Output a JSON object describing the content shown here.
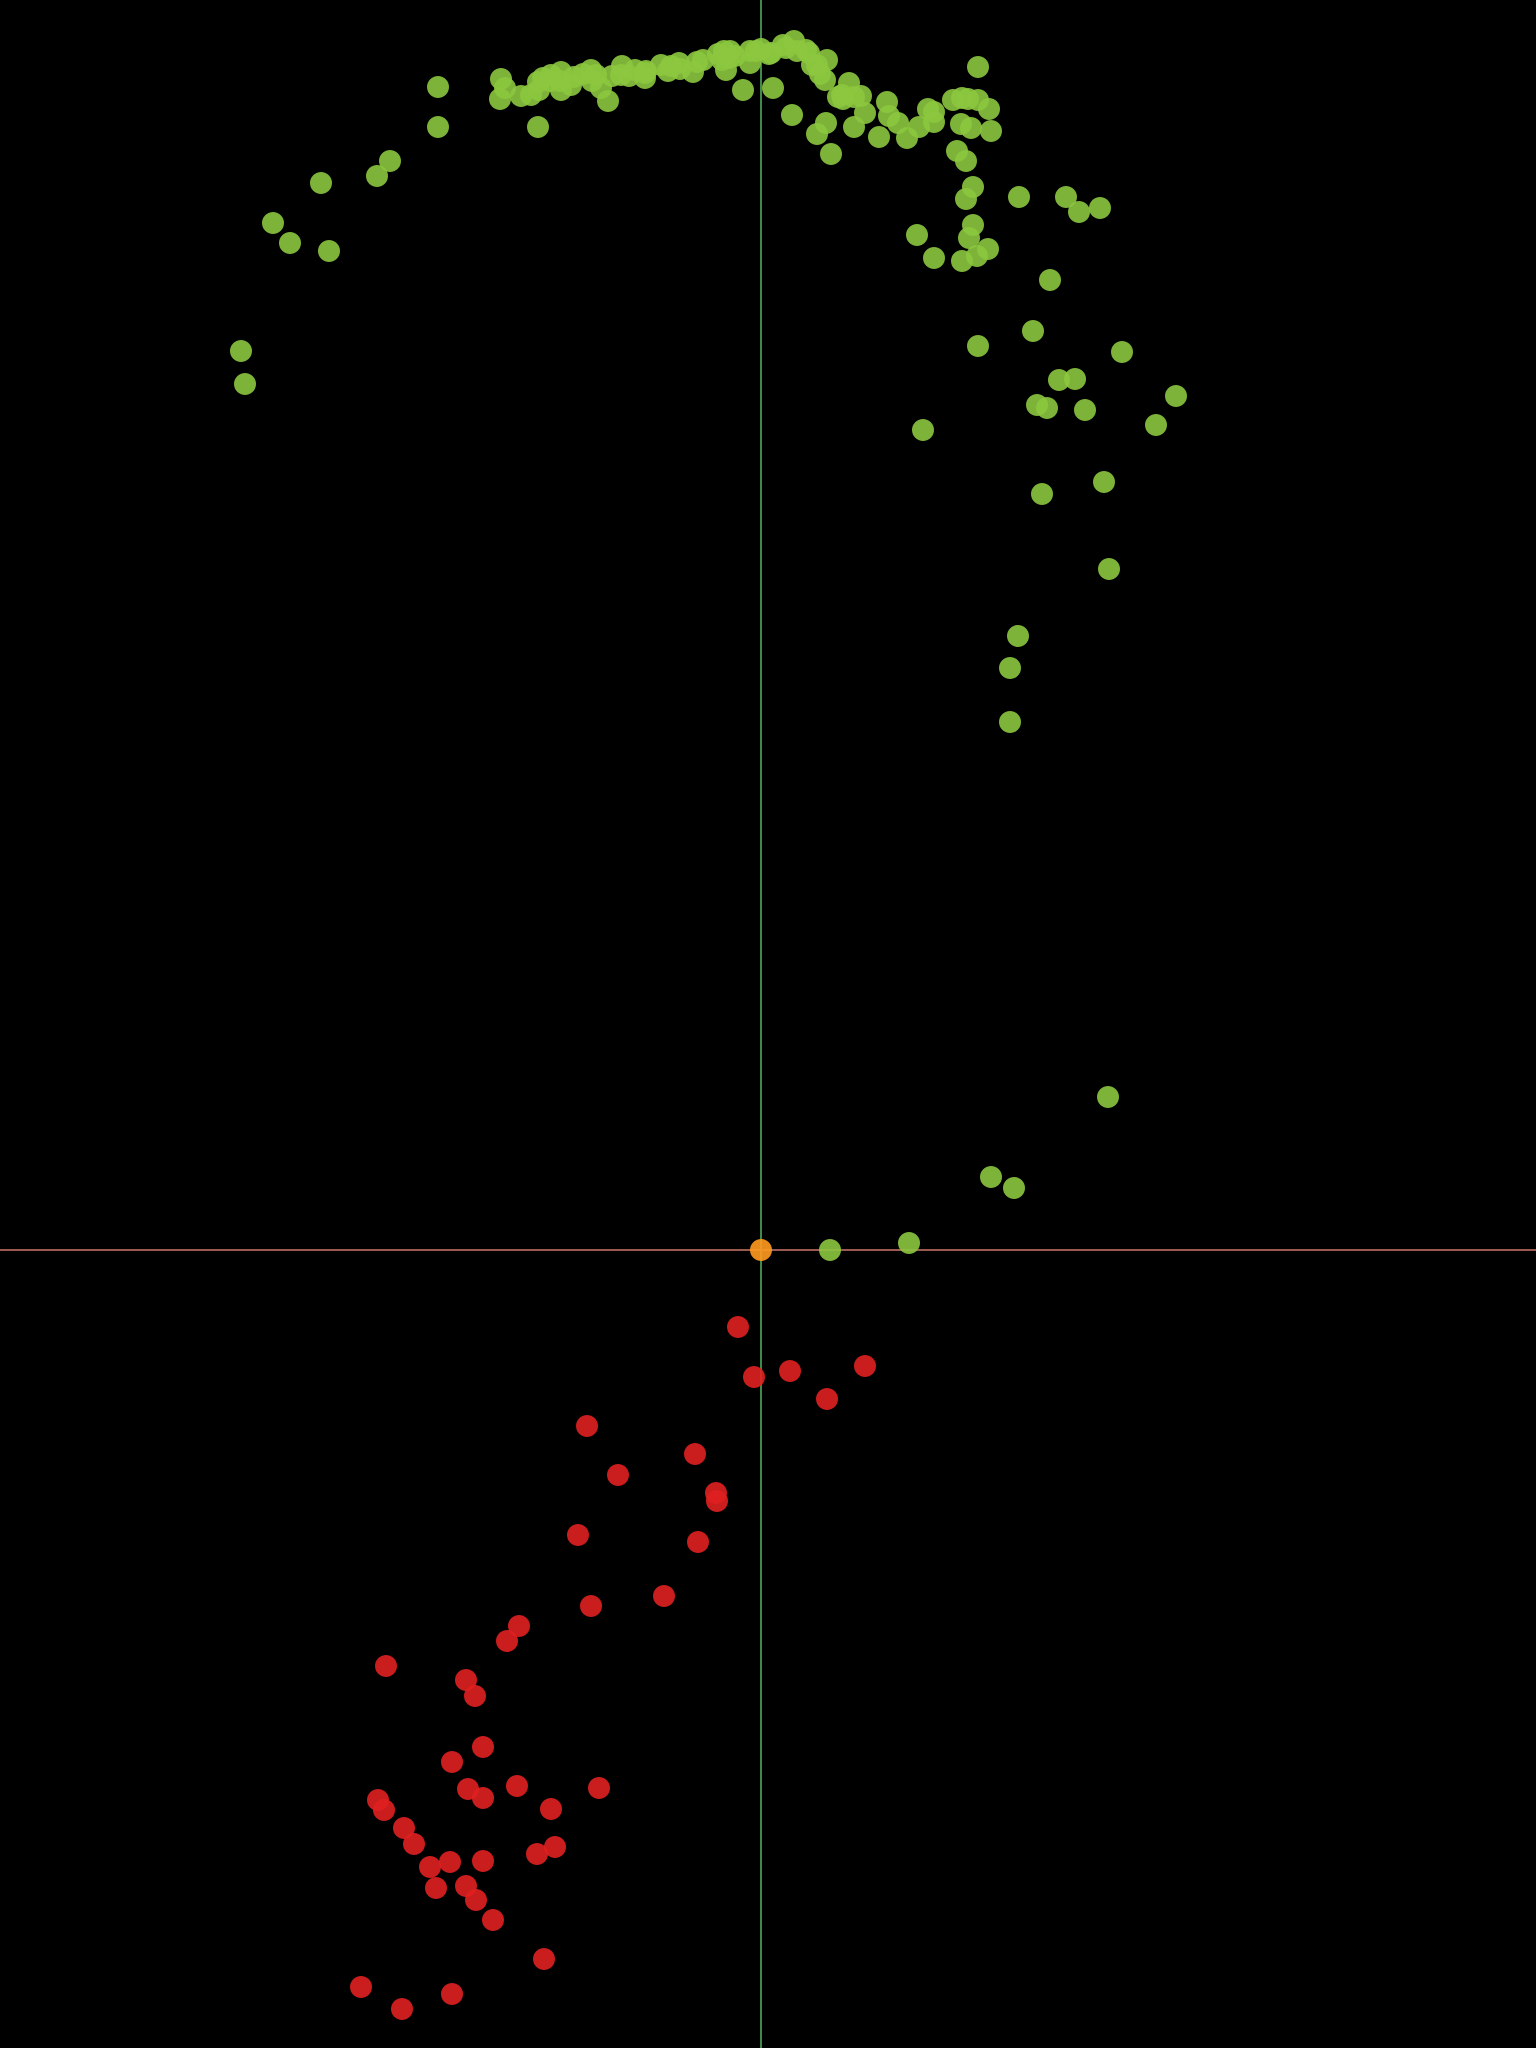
{
  "chart_data": {
    "type": "scatter",
    "title": "",
    "xlabel": "",
    "ylabel": "",
    "grid": false,
    "legend": "none",
    "background": "#000000",
    "xlim": [
      -761,
      775
    ],
    "ylim": [
      -798,
      1250
    ],
    "axes": {
      "x_axis_color": "#9a5a50",
      "y_axis_color": "#3f8a4a"
    },
    "series": [
      {
        "color": "#8cc63f",
        "opacity": 0.9,
        "points": [
          [
            -520,
            899
          ],
          [
            -516,
            866
          ],
          [
            -488,
            1027
          ],
          [
            -471,
            1007
          ],
          [
            -432,
            999
          ],
          [
            -440,
            1067
          ],
          [
            -384,
            1074
          ],
          [
            -371,
            1089
          ],
          [
            -223,
            1123
          ],
          [
            -223,
            1168
          ],
          [
            -211,
            1169
          ],
          [
            -201,
            1169
          ],
          [
            -187,
            1173
          ],
          [
            -169,
            1169
          ],
          [
            -165,
            1175
          ],
          [
            -149,
            1174
          ],
          [
            -153,
            1149
          ],
          [
            -116,
            1177
          ],
          [
            -115,
            1179
          ],
          [
            -116,
            1172
          ],
          [
            -93,
            1179
          ],
          [
            -90,
            1184
          ],
          [
            -81,
            1181
          ],
          [
            -82,
            1187
          ],
          [
            -68,
            1178
          ],
          [
            -64,
            1188
          ],
          [
            -58,
            1190
          ],
          [
            -43,
            1196
          ],
          [
            -37,
            1199
          ],
          [
            -39,
            1190
          ],
          [
            -31,
            1199
          ],
          [
            -26,
            1194
          ],
          [
            -11,
            1199
          ],
          [
            -11,
            1187
          ],
          [
            -5,
            1199
          ],
          [
            0,
            1201
          ],
          [
            8,
            1196
          ],
          [
            10,
            1197
          ],
          [
            22,
            1205
          ],
          [
            25,
            1202
          ],
          [
            36,
            1199
          ],
          [
            45,
            1200
          ],
          [
            51,
            1185
          ],
          [
            66,
            1190
          ],
          [
            88,
            1167
          ],
          [
            82,
            1151
          ],
          [
            59,
            1176
          ],
          [
            -35,
            1180
          ],
          [
            -18,
            1160
          ],
          [
            -32,
            1192
          ],
          [
            33,
            1209
          ],
          [
            48,
            1197
          ],
          [
            56,
            1185
          ],
          [
            64,
            1170
          ],
          [
            77,
            1153
          ],
          [
            81,
            1155
          ],
          [
            93,
            1153
          ],
          [
            100,
            1154
          ],
          [
            126,
            1148
          ],
          [
            167,
            1141
          ],
          [
            173,
            1138
          ],
          [
            192,
            1150
          ],
          [
            201,
            1152
          ],
          [
            217,
            1150
          ],
          [
            228,
            1141
          ],
          [
            200,
            1126
          ],
          [
            173,
            1128
          ],
          [
            158,
            1123
          ],
          [
            137,
            1127
          ],
          [
            146,
            1112
          ],
          [
            118,
            1113
          ],
          [
            128,
            1134
          ],
          [
            104,
            1137
          ],
          [
            93,
            1123
          ],
          [
            70,
            1096
          ],
          [
            56,
            1116
          ],
          [
            65,
            1127
          ],
          [
            31,
            1135
          ],
          [
            12,
            1162
          ],
          [
            217,
            1183
          ],
          [
            207,
            1151
          ],
          [
            230,
            1119
          ],
          [
            210,
            1122
          ],
          [
            196,
            1099
          ],
          [
            205,
            1089
          ],
          [
            212,
            1063
          ],
          [
            205,
            1051
          ],
          [
            212,
            1025
          ],
          [
            208,
            1012
          ],
          [
            227,
            1001
          ],
          [
            216,
            994
          ],
          [
            201,
            989
          ],
          [
            156,
            1015
          ],
          [
            173,
            992
          ],
          [
            258,
            1053
          ],
          [
            305,
            1053
          ],
          [
            289,
            970
          ],
          [
            318,
            1038
          ],
          [
            339,
            1042
          ],
          [
            217,
            904
          ],
          [
            162,
            820
          ],
          [
            272,
            919
          ],
          [
            298,
            870
          ],
          [
            276,
            845
          ],
          [
            286,
            842
          ],
          [
            314,
            871
          ],
          [
            361,
            898
          ],
          [
            415,
            854
          ],
          [
            395,
            825
          ],
          [
            324,
            840
          ],
          [
            281,
            756
          ],
          [
            343,
            768
          ],
          [
            348,
            681
          ],
          [
            257,
            614
          ],
          [
            249,
            582
          ],
          [
            249,
            528
          ],
          [
            -230,
            1155
          ],
          [
            -323,
            1163
          ],
          [
            -240,
            1154
          ],
          [
            -170,
            1180
          ],
          [
            -210,
            1175
          ],
          [
            -200,
            1160
          ],
          [
            -190,
            1165
          ],
          [
            -178,
            1176
          ],
          [
            -139,
            1184
          ],
          [
            -132,
            1174
          ],
          [
            -126,
            1180
          ],
          [
            -100,
            1185
          ],
          [
            -140,
            1175
          ],
          [
            -160,
            1162
          ],
          [
            -260,
            1171
          ],
          [
            -261,
            1151
          ],
          [
            -256,
            1162
          ],
          [
            -323,
            1123
          ],
          [
            -222,
            1160
          ],
          [
            -200,
            1178
          ],
          [
            -218,
            1172
          ],
          [
            347,
            153
          ],
          [
            230,
            73
          ],
          [
            253,
            62
          ],
          [
            148,
            7
          ],
          [
            69,
            0
          ]
        ]
      },
      {
        "color": "#e02020",
        "opacity": 0.9,
        "points": [
          [
            -23,
            -77
          ],
          [
            -7,
            -127
          ],
          [
            29,
            -121
          ],
          [
            104,
            -116
          ],
          [
            66,
            -149
          ],
          [
            -174,
            -176
          ],
          [
            -143,
            -225
          ],
          [
            -66,
            -204
          ],
          [
            -45,
            -243
          ],
          [
            -44,
            -251
          ],
          [
            -183,
            -285
          ],
          [
            -63,
            -292
          ],
          [
            -170,
            -356
          ],
          [
            -97,
            -346
          ],
          [
            -242,
            -376
          ],
          [
            -254,
            -391
          ],
          [
            -375,
            -416
          ],
          [
            -295,
            -430
          ],
          [
            -286,
            -446
          ],
          [
            -278,
            -497
          ],
          [
            -309,
            -512
          ],
          [
            -244,
            -536
          ],
          [
            -278,
            -548
          ],
          [
            -293,
            -539
          ],
          [
            -162,
            -538
          ],
          [
            -210,
            -559
          ],
          [
            -383,
            -550
          ],
          [
            -377,
            -560
          ],
          [
            -357,
            -578
          ],
          [
            -347,
            -594
          ],
          [
            -331,
            -617
          ],
          [
            -311,
            -612
          ],
          [
            -278,
            -611
          ],
          [
            -224,
            -604
          ],
          [
            -206,
            -597
          ],
          [
            -325,
            -638
          ],
          [
            -295,
            -636
          ],
          [
            -285,
            -650
          ],
          [
            -268,
            -670
          ],
          [
            -217,
            -709
          ],
          [
            -400,
            -737
          ],
          [
            -359,
            -759
          ],
          [
            -309,
            -744
          ]
        ]
      },
      {
        "color": "#ff9a1f",
        "opacity": 0.9,
        "points": [
          [
            0,
            0
          ]
        ]
      }
    ]
  }
}
